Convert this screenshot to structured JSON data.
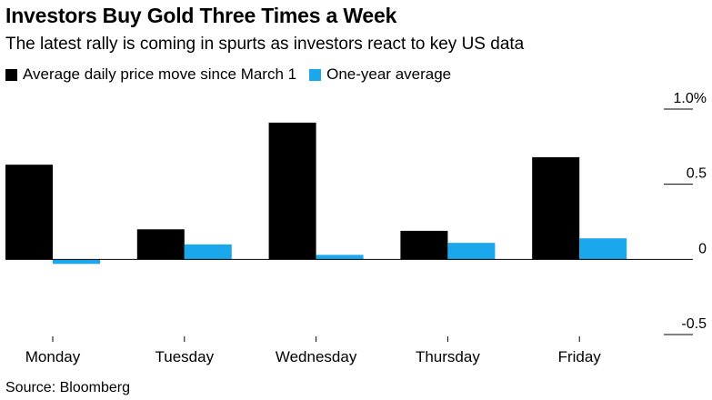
{
  "header": {
    "title": "Investors Buy Gold Three Times a Week",
    "subtitle": "The latest rally is coming in spurts as investors react to key US data"
  },
  "footer": {
    "source": "Source: Bloomberg"
  },
  "colors": {
    "series_a": "#000000",
    "series_b": "#1aa7ec",
    "axis": "#000000"
  },
  "chart_data": {
    "type": "bar",
    "title": "Investors Buy Gold Three Times a Week",
    "subtitle": "The latest rally is coming in spurts as investors react to key US data",
    "categories": [
      "Monday",
      "Tuesday",
      "Wednesday",
      "Thursday",
      "Friday"
    ],
    "series": [
      {
        "name": "Average daily price move since March 1",
        "values": [
          0.63,
          0.2,
          0.91,
          0.19,
          0.68
        ]
      },
      {
        "name": "One-year average",
        "values": [
          -0.03,
          0.1,
          0.03,
          0.11,
          0.14
        ]
      }
    ],
    "yticks": [
      "1.0%",
      "0.5",
      "0",
      "-0.5"
    ],
    "ytick_values": [
      1.0,
      0.5,
      0,
      -0.5
    ],
    "ylim": [
      -0.5,
      1.0
    ],
    "legend_position": "top-left",
    "grid": false
  }
}
